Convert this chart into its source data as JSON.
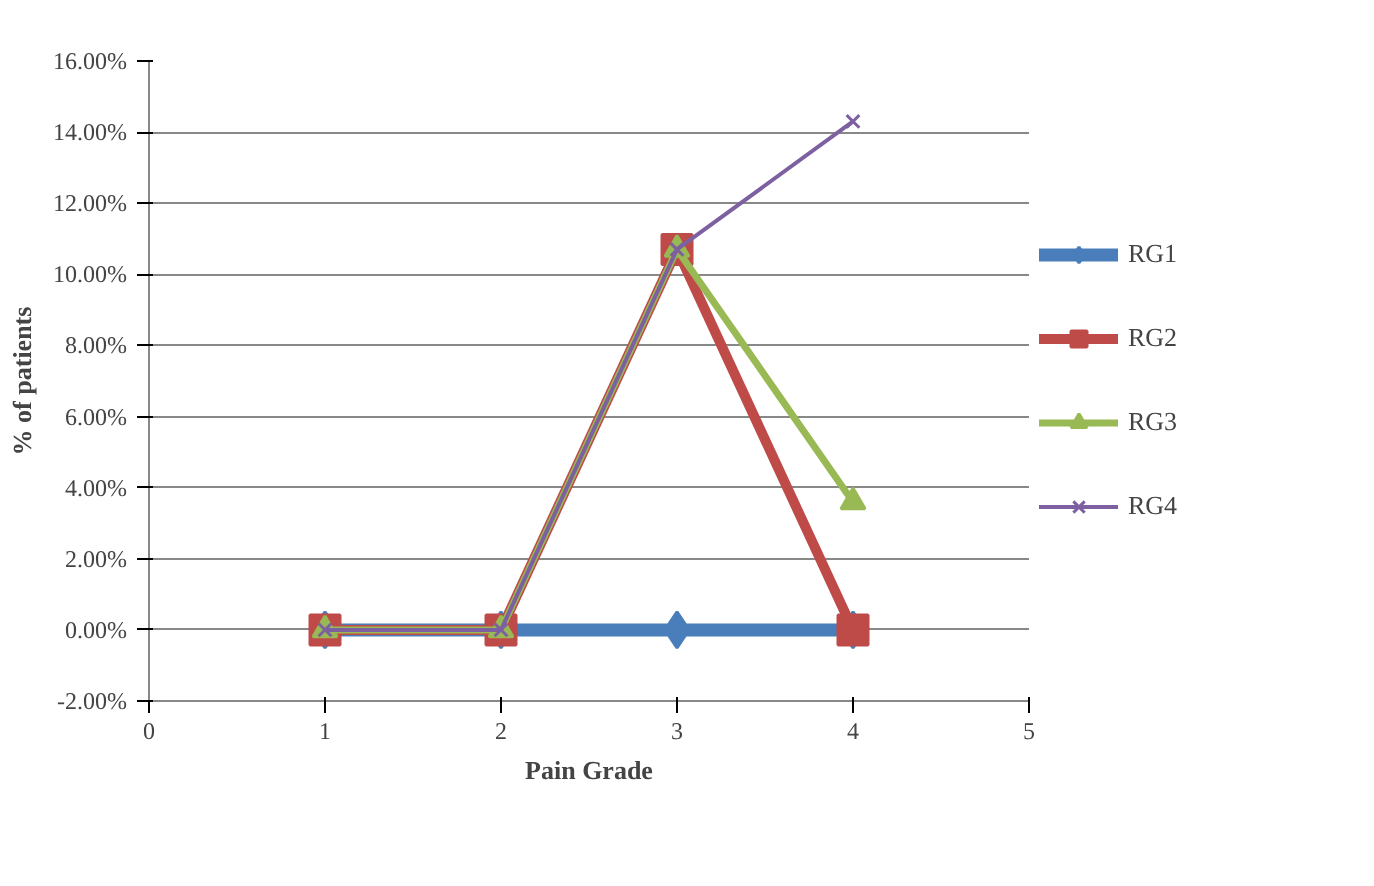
{
  "chart_data": {
    "type": "line",
    "xlabel": "Pain Grade",
    "ylabel": "% of patients",
    "x": [
      1,
      2,
      3,
      4
    ],
    "series": [
      {
        "name": "RG1",
        "color": "#4a7ebb",
        "marker": "diamond",
        "values": [
          0,
          0,
          0,
          0
        ]
      },
      {
        "name": "RG2",
        "color": "#be4b48",
        "marker": "square",
        "values": [
          0,
          0,
          10.7,
          0
        ]
      },
      {
        "name": "RG3",
        "color": "#98b954",
        "marker": "triangle",
        "values": [
          0,
          0,
          10.7,
          3.6
        ]
      },
      {
        "name": "RG4",
        "color": "#7d60a0",
        "marker": "cross",
        "values": [
          0,
          0,
          10.7,
          14.3
        ]
      }
    ],
    "xlim": [
      0,
      5
    ],
    "xticks": [
      0,
      1,
      2,
      3,
      4,
      5
    ],
    "ylim": [
      -2,
      16
    ],
    "yticks": [
      {
        "value": -2,
        "label": "-2.00%"
      },
      {
        "value": 0,
        "label": "0.00%"
      },
      {
        "value": 2,
        "label": "2.00%"
      },
      {
        "value": 4,
        "label": "4.00%"
      },
      {
        "value": 6,
        "label": "6.00%"
      },
      {
        "value": 8,
        "label": "8.00%"
      },
      {
        "value": 10,
        "label": "10.00%"
      },
      {
        "value": 12,
        "label": "12.00%"
      },
      {
        "value": 14,
        "label": "14.00%"
      },
      {
        "value": 16,
        "label": "16.00%"
      }
    ],
    "grid": "y",
    "legend": "right"
  }
}
